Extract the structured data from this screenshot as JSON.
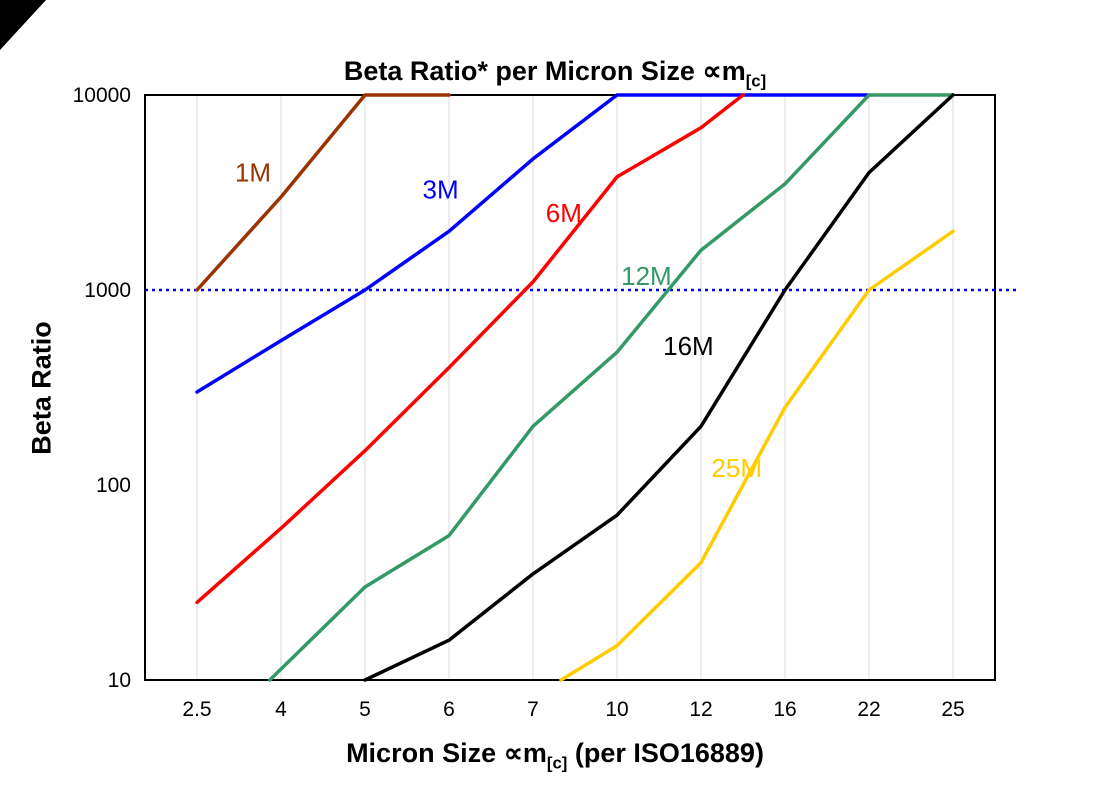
{
  "chart_data": {
    "type": "line",
    "title_prefix": "Beta Ratio* per Micron Size ∝m",
    "title_sub": "[c]",
    "ylabel": "Beta Ratio",
    "xlabel_prefix": "Micron Size ∝m",
    "xlabel_sub": "[c]",
    "xlabel_suffix": " (per ISO16889)",
    "y_scale": "log",
    "ylim": [
      10,
      10000
    ],
    "y_ticks": [
      {
        "value": 10,
        "label": "10"
      },
      {
        "value": 100,
        "label": "100"
      },
      {
        "value": 1000,
        "label": "1000"
      },
      {
        "value": 10000,
        "label": "10000"
      }
    ],
    "categories": [
      2.5,
      4,
      5,
      6,
      7,
      10,
      12,
      16,
      22,
      25
    ],
    "x_tick_labels": [
      "2.5",
      "4",
      "5",
      "6",
      "7",
      "10",
      "12",
      "16",
      "22",
      "25"
    ],
    "grid": {
      "vertical": true,
      "color": "#d9d9d9"
    },
    "reference_line": {
      "y": 1000,
      "color": "#0000ff",
      "style": "dotted"
    },
    "series": [
      {
        "name": "1M",
        "color": "#993300",
        "points": [
          [
            2.5,
            1000
          ],
          [
            4,
            3000
          ],
          [
            5,
            10000
          ],
          [
            6,
            10000
          ]
        ]
      },
      {
        "name": "3M",
        "color": "#0000ff",
        "points": [
          [
            2.5,
            300
          ],
          [
            4,
            550
          ],
          [
            5,
            1000
          ],
          [
            6,
            2000
          ],
          [
            7,
            4700
          ],
          [
            10,
            10000
          ],
          [
            22,
            10000
          ]
        ]
      },
      {
        "name": "6M",
        "color": "#ff0000",
        "points": [
          [
            2.5,
            25
          ],
          [
            4,
            60
          ],
          [
            5,
            150
          ],
          [
            6,
            400
          ],
          [
            7,
            1100
          ],
          [
            10,
            3800
          ],
          [
            12,
            6800
          ],
          [
            14,
            10000
          ]
        ]
      },
      {
        "name": "12M",
        "color": "#339966",
        "points": [
          [
            3.8,
            10
          ],
          [
            5,
            30
          ],
          [
            6,
            55
          ],
          [
            7,
            200
          ],
          [
            10,
            480
          ],
          [
            12,
            1600
          ],
          [
            16,
            3500
          ],
          [
            22,
            10000
          ],
          [
            25,
            10000
          ]
        ]
      },
      {
        "name": "16M",
        "color": "#000000",
        "points": [
          [
            5,
            10
          ],
          [
            6,
            16
          ],
          [
            7,
            35
          ],
          [
            10,
            70
          ],
          [
            12,
            200
          ],
          [
            16,
            1000
          ],
          [
            22,
            4000
          ],
          [
            25,
            10000
          ]
        ]
      },
      {
        "name": "25M",
        "color": "#ffcc00",
        "points": [
          [
            8,
            10
          ],
          [
            10,
            15
          ],
          [
            12,
            40
          ],
          [
            16,
            250
          ],
          [
            22,
            1000
          ],
          [
            25,
            2000
          ]
        ]
      }
    ],
    "annotations": [
      {
        "text": "1M",
        "color": "#993300",
        "x": 3.5,
        "y": 3600
      },
      {
        "text": "3M",
        "color": "#0000ff",
        "x": 5.9,
        "y": 2950
      },
      {
        "text": "6M",
        "color": "#ff0000",
        "x": 8.1,
        "y": 2230
      },
      {
        "text": "12M",
        "color": "#339966",
        "x": 10.7,
        "y": 1060
      },
      {
        "text": "16M",
        "color": "#000000",
        "x": 11.7,
        "y": 465
      },
      {
        "text": "25M",
        "color": "#ffcc00",
        "x": 13.7,
        "y": 110
      }
    ]
  }
}
